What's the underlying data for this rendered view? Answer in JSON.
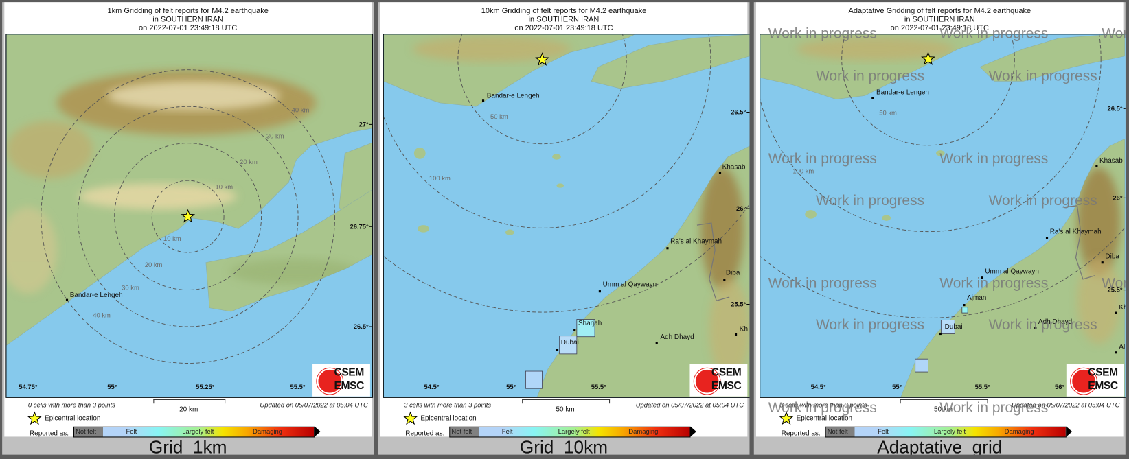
{
  "panels": [
    {
      "title": [
        "1km Gridding of felt reports for M4.2 earthquake",
        "in SOUTHERN IRAN",
        "on  2022-07-01 23:49:18 UTC"
      ],
      "lat_labels": [
        "27°",
        "26.75°",
        "26.5°"
      ],
      "lon_labels": [
        "54.75°",
        "55°",
        "55.25°",
        "55.5°"
      ],
      "distance_labels": [
        "10 km",
        "20 km",
        "30 km",
        "40 km",
        "10 km",
        "20 km",
        "30 km",
        "40 km"
      ],
      "cities": [
        "Bandar-e Lengeh"
      ],
      "cells": [],
      "cells_text": "0 cells with more than 3 points",
      "scale_label": "20 km",
      "updated": "Updated on 05/07/2022 at 05:04 UTC",
      "label": "Grid_1km"
    },
    {
      "title": [
        "10km Gridding of felt reports for M4.2 earthquake",
        "in SOUTHERN IRAN",
        "on  2022-07-01 23:49:18 UTC"
      ],
      "lat_labels": [
        "26.5°",
        "26°",
        "25.5°"
      ],
      "lon_labels": [
        "54.5°",
        "55°",
        "55.5°",
        "56°"
      ],
      "distance_labels": [
        "50 km",
        "100 km"
      ],
      "cities": [
        "Bandar-e Lengeh",
        "Khasab",
        "Ra's al Khaymah",
        "Diba",
        "Umm al Qaywayn",
        "Sharjah",
        "Dubai",
        "Adh Dhayd",
        "Kh"
      ],
      "cells": [
        {
          "class": "Felt",
          "color": "#a0eef4"
        },
        {
          "class": "Felt",
          "color": "#b8dcf8"
        },
        {
          "class": "Felt",
          "color": "#b0d6f8"
        }
      ],
      "cells_text": "3 cells with more than 3 points",
      "scale_label": "50 km",
      "updated": "Updated on 05/07/2022 at 05:04 UTC",
      "label": "Grid_10km"
    },
    {
      "title": [
        "Adaptative Gridding of felt reports for M4.2 earthquake",
        "in SOUTHERN IRAN",
        "on  2022-07-01 23:49:18 UTC"
      ],
      "lat_labels": [
        "26.5°",
        "26°",
        "25.5°"
      ],
      "lon_labels": [
        "54.5°",
        "55°",
        "55.5°",
        "56°"
      ],
      "distance_labels": [
        "50 km",
        "100 km"
      ],
      "cities": [
        "Bandar-e Lengeh",
        "Khasab",
        "Ra's al Khaymah",
        "Diba",
        "Umm al Qaywayn",
        "Ajman",
        "Dubai",
        "Adh Dhayd",
        "Kh",
        "Al"
      ],
      "cells": [
        {
          "class": "Felt",
          "color": "#90f0f0"
        },
        {
          "class": "Felt",
          "color": "#b8dcf8"
        },
        {
          "class": "Felt",
          "color": "#b0d6f8"
        }
      ],
      "cells_text": "3 cells with more than 3 points",
      "scale_label": "50 km",
      "updated": "Updated on 05/07/2022 at 05:04 UTC",
      "label": "Adaptative_grid",
      "watermark": "Work in progress"
    }
  ],
  "legend": {
    "epicenter": "Epicentral location",
    "reported_as": "Reported as:",
    "classes": [
      "Not felt",
      "Felt",
      "Largely felt",
      "Damaging"
    ]
  },
  "logo": {
    "line1": "CSEM",
    "line2": "EMSC"
  },
  "colors": {
    "sea": "#86c9ec",
    "land": "#a9c58c",
    "mountain": "#b0904c",
    "star": "#ffff20",
    "logo_red": "#e8231f"
  }
}
